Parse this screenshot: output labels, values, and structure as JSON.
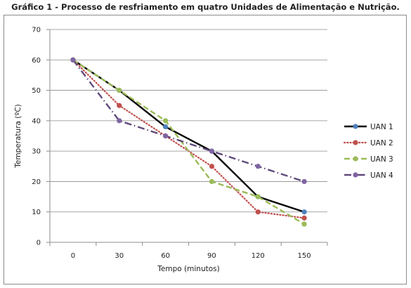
{
  "chart_data": {
    "type": "line",
    "title": "Gráfico 1 - Processo de resfriamento em quatro Unidades de Alimentação e Nutrição.",
    "xlabel": "Tempo (minutos)",
    "ylabel": "Temperatura (ºC)",
    "x": [
      0,
      30,
      60,
      90,
      120,
      150
    ],
    "x_tick_labels": [
      "0",
      "30",
      "60",
      "90",
      "120",
      "150"
    ],
    "ylim": [
      0,
      70
    ],
    "y_ticks": [
      0,
      10,
      20,
      30,
      40,
      50,
      60,
      70
    ],
    "y_tick_labels": [
      "0",
      "10",
      "20",
      "30",
      "40",
      "50",
      "60",
      "70"
    ],
    "grid": "horizontal",
    "legend_position": "right",
    "series": [
      {
        "name": "UAN 1",
        "values": [
          60,
          50,
          38,
          30,
          15,
          10
        ],
        "line_color": "#000000",
        "marker_color": "#4f81bd",
        "dash": "solid"
      },
      {
        "name": "UAN 2",
        "values": [
          60,
          45,
          35,
          25,
          10,
          8
        ],
        "line_color": "#c0504d",
        "marker_color": "#c0504d",
        "dash": "dotted"
      },
      {
        "name": "UAN 3",
        "values": [
          60,
          50,
          40,
          20,
          15,
          6
        ],
        "line_color": "#9bbb59",
        "marker_color": "#9bbb59",
        "dash": "dashed"
      },
      {
        "name": "UAN 4",
        "values": [
          60,
          40,
          35,
          30,
          25,
          20
        ],
        "line_color": "#604a7b",
        "marker_color": "#8064a2",
        "dash": "dashdot"
      }
    ]
  }
}
